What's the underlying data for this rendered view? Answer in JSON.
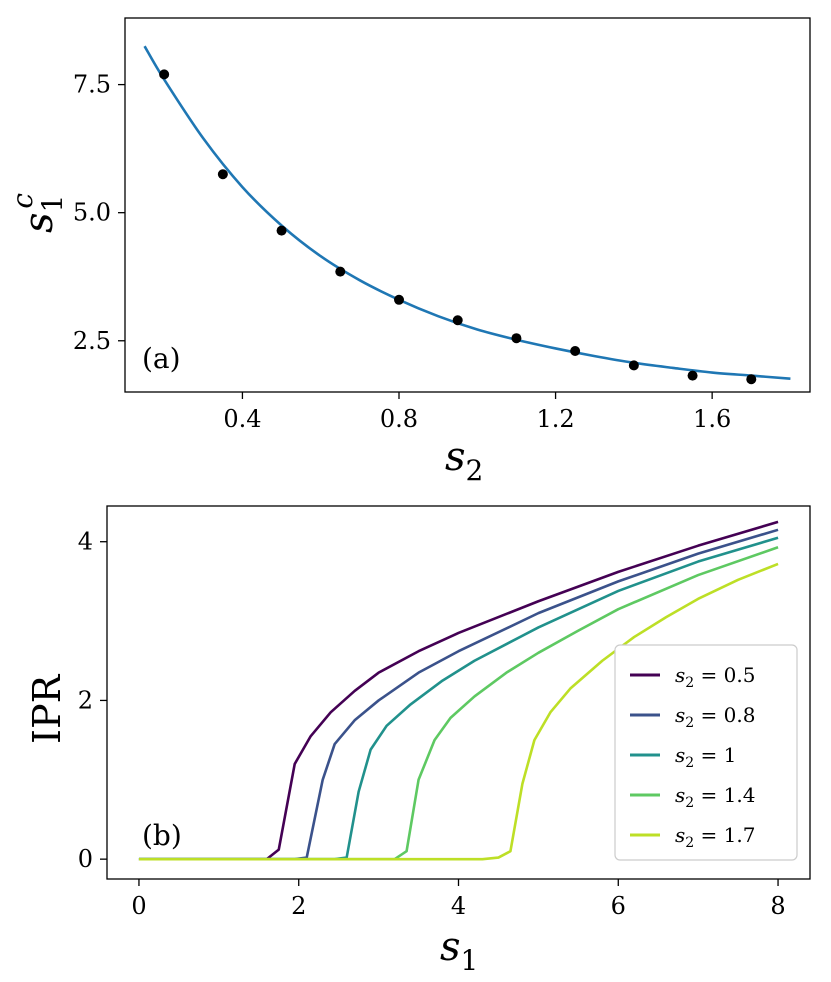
{
  "chart_data": [
    {
      "type": "scatter",
      "panel_label": "(a)",
      "xlabel": "s2",
      "xlabel_main": "s",
      "xlabel_sub": "2",
      "ylabel": "s1c",
      "ylabel_main": "s",
      "ylabel_sub": "1",
      "ylabel_sup": "c",
      "xlim": [
        0.1,
        1.85
      ],
      "ylim": [
        1.5,
        8.8
      ],
      "xticks": [
        0.4,
        0.8,
        1.2,
        1.6
      ],
      "xtick_labels": [
        "0.4",
        "0.8",
        "1.2",
        "1.6"
      ],
      "yticks": [
        2.5,
        5.0,
        7.5
      ],
      "ytick_labels": [
        "2.5",
        "5.0",
        "7.5"
      ],
      "grid": false,
      "points": {
        "color": "#000000",
        "x": [
          0.2,
          0.35,
          0.5,
          0.65,
          0.8,
          0.95,
          1.1,
          1.25,
          1.4,
          1.55,
          1.7
        ],
        "y": [
          7.7,
          5.75,
          4.65,
          3.85,
          3.3,
          2.9,
          2.55,
          2.3,
          2.02,
          1.82,
          1.75
        ]
      },
      "fit": {
        "color": "#1f77b4",
        "x": [
          0.15,
          0.2,
          0.3,
          0.4,
          0.5,
          0.6,
          0.7,
          0.8,
          0.9,
          1.0,
          1.1,
          1.2,
          1.3,
          1.4,
          1.5,
          1.6,
          1.7,
          1.8
        ],
        "y": [
          8.25,
          7.6,
          6.45,
          5.5,
          4.75,
          4.15,
          3.68,
          3.3,
          2.98,
          2.72,
          2.52,
          2.35,
          2.2,
          2.07,
          1.97,
          1.88,
          1.82,
          1.76
        ]
      }
    },
    {
      "type": "line",
      "panel_label": "(b)",
      "xlabel": "s1",
      "xlabel_main": "s",
      "xlabel_sub": "1",
      "ylabel": "IPR",
      "xlim": [
        -0.4,
        8.4
      ],
      "ylim": [
        -0.25,
        4.45
      ],
      "xticks": [
        0,
        2,
        4,
        6,
        8
      ],
      "xtick_labels": [
        "0",
        "2",
        "4",
        "6",
        "8"
      ],
      "yticks": [
        0,
        2,
        4
      ],
      "ytick_labels": [
        "0",
        "2",
        "4"
      ],
      "grid": false,
      "legend_position": "lower-right",
      "series": [
        {
          "name": "s2 = 0.5",
          "name_var": "s",
          "name_sub": "2",
          "name_val": " = 0.5",
          "color": "#440154",
          "x": [
            0,
            1.6,
            1.75,
            1.95,
            2.15,
            2.4,
            2.7,
            3.0,
            3.5,
            4.0,
            5.0,
            6.0,
            7.0,
            8.0
          ],
          "y": [
            0,
            0,
            0.12,
            1.2,
            1.55,
            1.85,
            2.12,
            2.35,
            2.62,
            2.85,
            3.25,
            3.62,
            3.95,
            4.25
          ]
        },
        {
          "name": "s2 = 0.8",
          "name_var": "s",
          "name_sub": "2",
          "name_val": " = 0.8",
          "color": "#3b528b",
          "x": [
            0,
            1.95,
            2.1,
            2.3,
            2.45,
            2.7,
            3.0,
            3.5,
            4.0,
            5.0,
            6.0,
            7.0,
            8.0
          ],
          "y": [
            0,
            0,
            0.02,
            1.0,
            1.45,
            1.75,
            2.0,
            2.35,
            2.62,
            3.1,
            3.5,
            3.85,
            4.15
          ]
        },
        {
          "name": "s2 = 1",
          "name_var": "s",
          "name_sub": "2",
          "name_val": " = 1",
          "color": "#21918c",
          "x": [
            0,
            2.45,
            2.6,
            2.75,
            2.9,
            3.1,
            3.4,
            3.8,
            4.2,
            5.0,
            6.0,
            7.0,
            8.0
          ],
          "y": [
            0,
            0,
            0.02,
            0.85,
            1.38,
            1.68,
            1.95,
            2.25,
            2.5,
            2.92,
            3.38,
            3.75,
            4.05
          ]
        },
        {
          "name": "s2 = 1.4",
          "name_var": "s",
          "name_sub": "2",
          "name_val": " = 1.4",
          "color": "#5ec962",
          "x": [
            0,
            3.2,
            3.35,
            3.5,
            3.7,
            3.9,
            4.2,
            4.6,
            5.0,
            5.5,
            6.0,
            7.0,
            8.0
          ],
          "y": [
            0,
            0,
            0.1,
            1.0,
            1.5,
            1.78,
            2.05,
            2.35,
            2.6,
            2.88,
            3.15,
            3.58,
            3.93
          ]
        },
        {
          "name": "s2 = 1.7",
          "name_var": "s",
          "name_sub": "2",
          "name_val": " = 1.7",
          "color": "#bddf26",
          "x": [
            0,
            4.3,
            4.5,
            4.65,
            4.8,
            4.95,
            5.15,
            5.4,
            5.8,
            6.2,
            6.6,
            7.0,
            7.5,
            8.0
          ],
          "y": [
            0,
            0,
            0.02,
            0.1,
            0.95,
            1.5,
            1.85,
            2.15,
            2.5,
            2.8,
            3.05,
            3.28,
            3.52,
            3.72
          ]
        }
      ]
    }
  ]
}
